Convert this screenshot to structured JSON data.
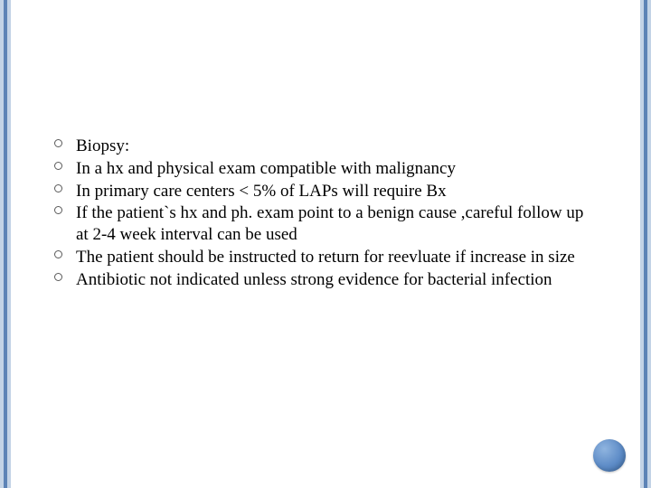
{
  "slide": {
    "background_color": "#ffffff",
    "border_stripe_colors": [
      "#c3d3e6",
      "#5d83b6",
      "#c3d3e6"
    ],
    "bullet_marker": {
      "shape": "open-circle",
      "border_color": "#5a5a5a"
    },
    "text_color": "#000000",
    "font_family": "Times New Roman",
    "body_fontsize_pt": 19,
    "items": [
      "Biopsy:",
      "In a hx and physical exam compatible with malignancy",
      "In primary care centers < 5% of LAPs will require Bx",
      "If the patient`s hx and ph. exam point to a benign cause ,careful follow up at 2-4 week interval can be used",
      "The patient should be instructed to return for reevluate if increase in size",
      "Antibiotic not indicated  unless strong evidence for bacterial infection"
    ],
    "corner_accent": {
      "shape": "sphere",
      "color": "#5e8cc7"
    }
  }
}
